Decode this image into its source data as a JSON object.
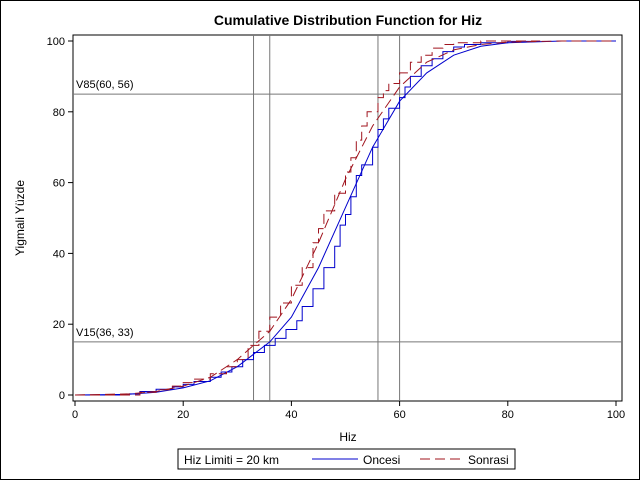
{
  "chart_data": {
    "type": "line",
    "title": "Cumulative Distribution Function for Hiz",
    "xlabel": "Hiz",
    "ylabel": "Yigmali Yüzde",
    "xlim": [
      0,
      100
    ],
    "ylim": [
      0,
      100
    ],
    "x_ticks": [
      "0",
      "20",
      "40",
      "60",
      "80",
      "100"
    ],
    "y_ticks": [
      "0",
      "20",
      "40",
      "60",
      "80",
      "100"
    ],
    "grid": false,
    "legend_position": "bottom",
    "legend_title": "Hiz Limiti = 20 km",
    "series": [
      {
        "name": "Oncesi",
        "color": "#0000cc",
        "style": "solid",
        "empirical_step": [
          [
            0,
            0
          ],
          [
            10,
            0.3
          ],
          [
            12,
            1
          ],
          [
            15,
            1.6
          ],
          [
            18,
            2.3
          ],
          [
            20,
            3
          ],
          [
            22,
            3.8
          ],
          [
            25,
            5
          ],
          [
            27,
            6.5
          ],
          [
            29,
            8
          ],
          [
            31,
            10
          ],
          [
            33,
            12
          ],
          [
            35,
            14
          ],
          [
            37,
            16
          ],
          [
            39,
            18.5
          ],
          [
            41,
            21
          ],
          [
            42,
            25
          ],
          [
            44,
            30
          ],
          [
            46,
            36
          ],
          [
            48,
            42
          ],
          [
            49,
            48
          ],
          [
            50,
            51
          ],
          [
            51,
            56
          ],
          [
            52,
            62
          ],
          [
            53,
            65
          ],
          [
            55,
            70
          ],
          [
            56,
            75
          ],
          [
            57,
            78
          ],
          [
            58,
            81
          ],
          [
            60,
            84
          ],
          [
            61,
            87
          ],
          [
            62,
            90
          ],
          [
            64,
            93
          ],
          [
            66,
            95
          ],
          [
            68,
            97
          ],
          [
            70,
            98.3
          ],
          [
            72,
            99
          ],
          [
            75,
            99.5
          ],
          [
            80,
            99.9
          ],
          [
            85,
            100
          ]
        ],
        "fitted": [
          [
            0,
            0
          ],
          [
            10,
            0.2
          ],
          [
            15,
            0.8
          ],
          [
            20,
            2
          ],
          [
            25,
            4
          ],
          [
            30,
            8
          ],
          [
            33,
            11.5
          ],
          [
            36,
            15
          ],
          [
            40,
            22
          ],
          [
            45,
            36
          ],
          [
            50,
            53
          ],
          [
            55,
            70
          ],
          [
            60,
            83
          ],
          [
            65,
            91
          ],
          [
            70,
            96
          ],
          [
            75,
            98.5
          ],
          [
            80,
            99.5
          ],
          [
            90,
            100
          ],
          [
            100,
            100
          ]
        ]
      },
      {
        "name": "Sonrasi",
        "color": "#a0141e",
        "style": "dashed",
        "empirical_step": [
          [
            0,
            0
          ],
          [
            12,
            0.8
          ],
          [
            15,
            1.5
          ],
          [
            18,
            2.5
          ],
          [
            20,
            3.5
          ],
          [
            22,
            4.5
          ],
          [
            25,
            6
          ],
          [
            28,
            8
          ],
          [
            30,
            10
          ],
          [
            32,
            14
          ],
          [
            34,
            18
          ],
          [
            36,
            22
          ],
          [
            38,
            26
          ],
          [
            40,
            31
          ],
          [
            42,
            36
          ],
          [
            44,
            43
          ],
          [
            45,
            47
          ],
          [
            46,
            52
          ],
          [
            48,
            57
          ],
          [
            50,
            63
          ],
          [
            51,
            67
          ],
          [
            52,
            72
          ],
          [
            53,
            76
          ],
          [
            54,
            80
          ],
          [
            56,
            84
          ],
          [
            57,
            86
          ],
          [
            58,
            88
          ],
          [
            60,
            91
          ],
          [
            62,
            94
          ],
          [
            64,
            96
          ],
          [
            66,
            98
          ],
          [
            68,
            99
          ],
          [
            70,
            99.5
          ],
          [
            75,
            100
          ],
          [
            86,
            100
          ]
        ],
        "fitted": [
          [
            0,
            0
          ],
          [
            10,
            0.3
          ],
          [
            15,
            1
          ],
          [
            20,
            2.5
          ],
          [
            25,
            5
          ],
          [
            30,
            10
          ],
          [
            33,
            14
          ],
          [
            36,
            18
          ],
          [
            40,
            27
          ],
          [
            45,
            43
          ],
          [
            50,
            61
          ],
          [
            55,
            76
          ],
          [
            60,
            87
          ],
          [
            65,
            94
          ],
          [
            70,
            97.5
          ],
          [
            75,
            99
          ],
          [
            80,
            99.7
          ],
          [
            90,
            100
          ],
          [
            100,
            100
          ]
        ]
      }
    ],
    "reference_lines": {
      "horizontal": [
        15,
        85
      ],
      "vertical": [
        33,
        36,
        56,
        60
      ]
    },
    "annotations": [
      {
        "text": "V85(60, 56)",
        "y": 85
      },
      {
        "text": "V15(36, 33)",
        "y": 15
      }
    ]
  }
}
